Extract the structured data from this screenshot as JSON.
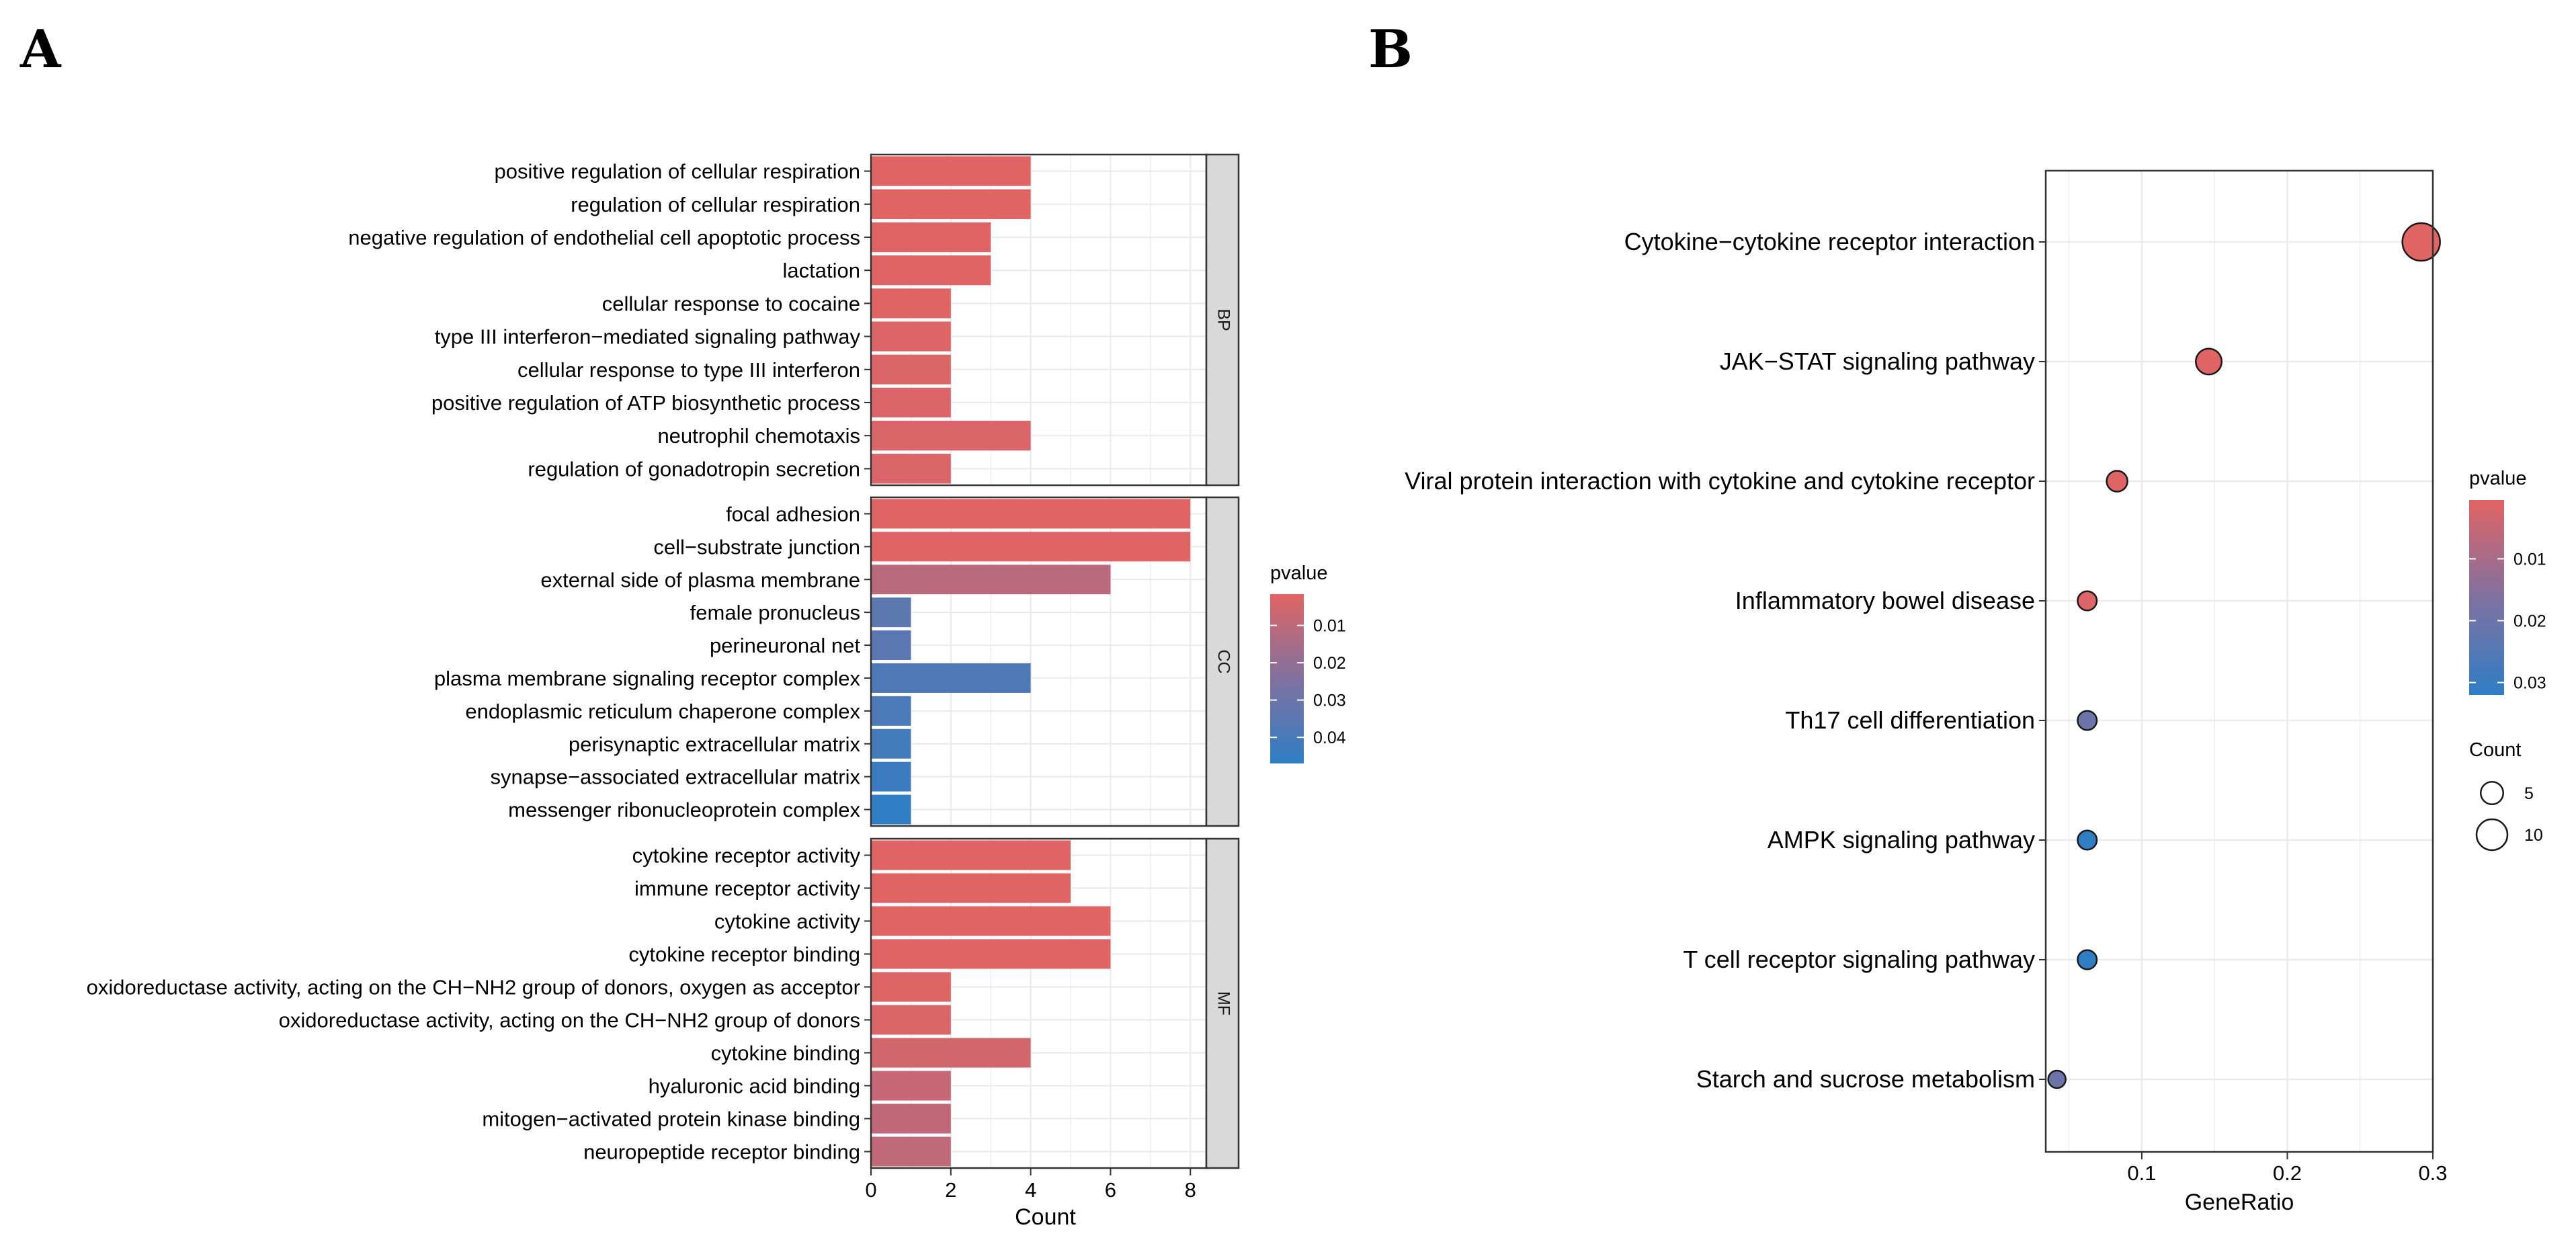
{
  "panel_labels": {
    "a": "A",
    "b": "B"
  },
  "colors": {
    "high": "#E16464",
    "low": "#2F7EC4",
    "grid": "#EBEBEB",
    "strip": "#D9D9D9"
  },
  "chart_data": [
    {
      "type": "bar",
      "orientation": "horizontal",
      "faceted": true,
      "xlabel": "Count",
      "xlim": [
        0,
        8.4
      ],
      "xticks": [
        0,
        2,
        4,
        6,
        8
      ],
      "legend": {
        "title": "pvalue",
        "ticks": [
          "0.01",
          "0.02",
          "0.03",
          "0.04"
        ],
        "tick_values": [
          0.01,
          0.02,
          0.03,
          0.04
        ],
        "range": [
          0.0016,
          0.047
        ],
        "placement": "right"
      },
      "facets": [
        {
          "name": "BP",
          "bars": [
            {
              "term": "positive regulation of cellular respiration",
              "count": 4,
              "pvalue": 0.0016
            },
            {
              "term": "regulation of cellular respiration",
              "count": 4,
              "pvalue": 0.0017
            },
            {
              "term": "negative regulation of endothelial cell apoptotic process",
              "count": 3,
              "pvalue": 0.002
            },
            {
              "term": "lactation",
              "count": 3,
              "pvalue": 0.0022
            },
            {
              "term": "cellular response to cocaine",
              "count": 2,
              "pvalue": 0.0024
            },
            {
              "term": "type III interferon−mediated signaling pathway",
              "count": 2,
              "pvalue": 0.0026
            },
            {
              "term": "cellular response to type III interferon",
              "count": 2,
              "pvalue": 0.0028
            },
            {
              "term": "positive regulation of ATP biosynthetic process",
              "count": 2,
              "pvalue": 0.003
            },
            {
              "term": "neutrophil chemotaxis",
              "count": 4,
              "pvalue": 0.0032
            },
            {
              "term": "regulation of gonadotropin secretion",
              "count": 2,
              "pvalue": 0.0034
            }
          ]
        },
        {
          "name": "CC",
          "bars": [
            {
              "term": "focal adhesion",
              "count": 8,
              "pvalue": 0.0018
            },
            {
              "term": "cell−substrate junction",
              "count": 8,
              "pvalue": 0.002
            },
            {
              "term": "external side of plasma membrane",
              "count": 6,
              "pvalue": 0.011
            },
            {
              "term": "female pronucleus",
              "count": 1,
              "pvalue": 0.034
            },
            {
              "term": "perineuronal net",
              "count": 1,
              "pvalue": 0.035
            },
            {
              "term": "plasma membrane signaling receptor complex",
              "count": 4,
              "pvalue": 0.038
            },
            {
              "term": "endoplasmic reticulum chaperone complex",
              "count": 1,
              "pvalue": 0.039
            },
            {
              "term": "perisynaptic extracellular matrix",
              "count": 1,
              "pvalue": 0.041
            },
            {
              "term": "synapse−associated extracellular matrix",
              "count": 1,
              "pvalue": 0.044
            },
            {
              "term": "messenger ribonucleoprotein complex",
              "count": 1,
              "pvalue": 0.047
            }
          ]
        },
        {
          "name": "MF",
          "bars": [
            {
              "term": "cytokine receptor activity",
              "count": 5,
              "pvalue": 0.0016
            },
            {
              "term": "immune receptor activity",
              "count": 5,
              "pvalue": 0.0017
            },
            {
              "term": "cytokine activity",
              "count": 6,
              "pvalue": 0.0018
            },
            {
              "term": "cytokine receptor binding",
              "count": 6,
              "pvalue": 0.002
            },
            {
              "term": "oxidoreductase activity, acting on the CH−NH2 group of donors, oxygen as acceptor",
              "count": 2,
              "pvalue": 0.0025
            },
            {
              "term": "oxidoreductase activity, acting on the CH−NH2 group of donors",
              "count": 2,
              "pvalue": 0.003
            },
            {
              "term": "cytokine binding",
              "count": 4,
              "pvalue": 0.005
            },
            {
              "term": "hyaluronic acid binding",
              "count": 2,
              "pvalue": 0.008
            },
            {
              "term": "mitogen−activated protein kinase binding",
              "count": 2,
              "pvalue": 0.009
            },
            {
              "term": "neuropeptide receptor binding",
              "count": 2,
              "pvalue": 0.0095
            }
          ]
        }
      ]
    },
    {
      "type": "scatter",
      "style": "dot",
      "xlabel": "GeneRatio",
      "xlim": [
        0.034,
        0.3
      ],
      "xticks": [
        0.1,
        0.2,
        0.3
      ],
      "xtick_labels": [
        "0.1",
        "0.2",
        "0.3"
      ],
      "legend": {
        "color": {
          "title": "pvalue",
          "ticks": [
            "0.01",
            "0.02",
            "0.03"
          ],
          "tick_values": [
            0.01,
            0.02,
            0.03
          ],
          "range": [
            0.0005,
            0.032
          ]
        },
        "size": {
          "title": "Count",
          "ticks": [
            "5",
            "10"
          ],
          "tick_values": [
            5,
            10
          ]
        },
        "placement": "right"
      },
      "points": [
        {
          "pathway": "Cytokine−cytokine receptor interaction",
          "gene_ratio": 0.292,
          "count": 14,
          "pvalue": 0.0005
        },
        {
          "pathway": "JAK−STAT signaling pathway",
          "gene_ratio": 0.146,
          "count": 7,
          "pvalue": 0.0007
        },
        {
          "pathway": "Viral protein interaction with cytokine and cytokine receptor",
          "gene_ratio": 0.083,
          "count": 4,
          "pvalue": 0.001
        },
        {
          "pathway": "Inflammatory bowel disease",
          "gene_ratio": 0.0625,
          "count": 3,
          "pvalue": 0.0012
        },
        {
          "pathway": "Th17 cell differentiation",
          "gene_ratio": 0.0625,
          "count": 3,
          "pvalue": 0.02
        },
        {
          "pathway": "AMPK signaling pathway",
          "gene_ratio": 0.0625,
          "count": 3,
          "pvalue": 0.032
        },
        {
          "pathway": "T cell receptor signaling pathway",
          "gene_ratio": 0.0625,
          "count": 3,
          "pvalue": 0.032
        },
        {
          "pathway": "Starch and sucrose metabolism",
          "gene_ratio": 0.0417,
          "count": 2,
          "pvalue": 0.02
        }
      ]
    }
  ]
}
